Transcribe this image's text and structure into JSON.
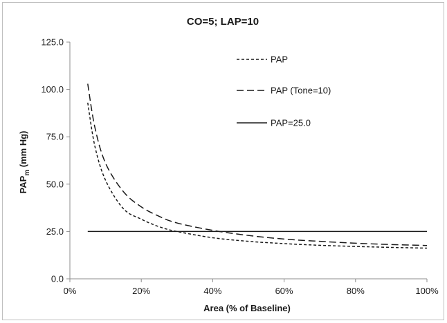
{
  "chart_data": {
    "type": "line",
    "title": "CO=5; LAP=10",
    "xlabel": "Area  (% of Baseline)",
    "ylabel_main": "PAP",
    "ylabel_sub": "m",
    "ylabel_rest": " (mm Hg)",
    "xlim": [
      0,
      1
    ],
    "ylim": [
      0,
      125
    ],
    "x_ticks": [
      0,
      0.2,
      0.4,
      0.6,
      0.8,
      1.0
    ],
    "x_tick_labels": [
      "0%",
      "20%",
      "40%",
      "60%",
      "80%",
      "100%"
    ],
    "y_ticks": [
      0,
      25,
      50,
      75,
      100,
      125
    ],
    "y_tick_labels": [
      "0.0",
      "25.0",
      "50.0",
      "75.0",
      "100.0",
      "125.0"
    ],
    "grid": false,
    "legend_position": "top-center",
    "series": [
      {
        "name": "PAP",
        "style": "dotted",
        "x": [
          0.05,
          0.07,
          0.1,
          0.15,
          0.2,
          0.25,
          0.3,
          0.4,
          0.5,
          0.6,
          0.7,
          0.8,
          0.9,
          1.0
        ],
        "values": [
          93,
          70,
          52,
          37,
          31.5,
          27.5,
          25,
          21.7,
          19.8,
          18.6,
          17.7,
          17.1,
          16.6,
          16.2
        ]
      },
      {
        "name": "PAP (Tone=10)",
        "style": "dashed",
        "x": [
          0.05,
          0.07,
          0.1,
          0.15,
          0.2,
          0.25,
          0.3,
          0.4,
          0.5,
          0.6,
          0.7,
          0.8,
          0.9,
          1.0
        ],
        "values": [
          103,
          80,
          61,
          46,
          38,
          33,
          29.5,
          25.6,
          22.9,
          21,
          19.8,
          18.8,
          18.1,
          17.6
        ]
      },
      {
        "name": "PAP=25.0",
        "style": "solid",
        "x": [
          0.05,
          1.0
        ],
        "values": [
          25,
          25
        ]
      }
    ]
  }
}
